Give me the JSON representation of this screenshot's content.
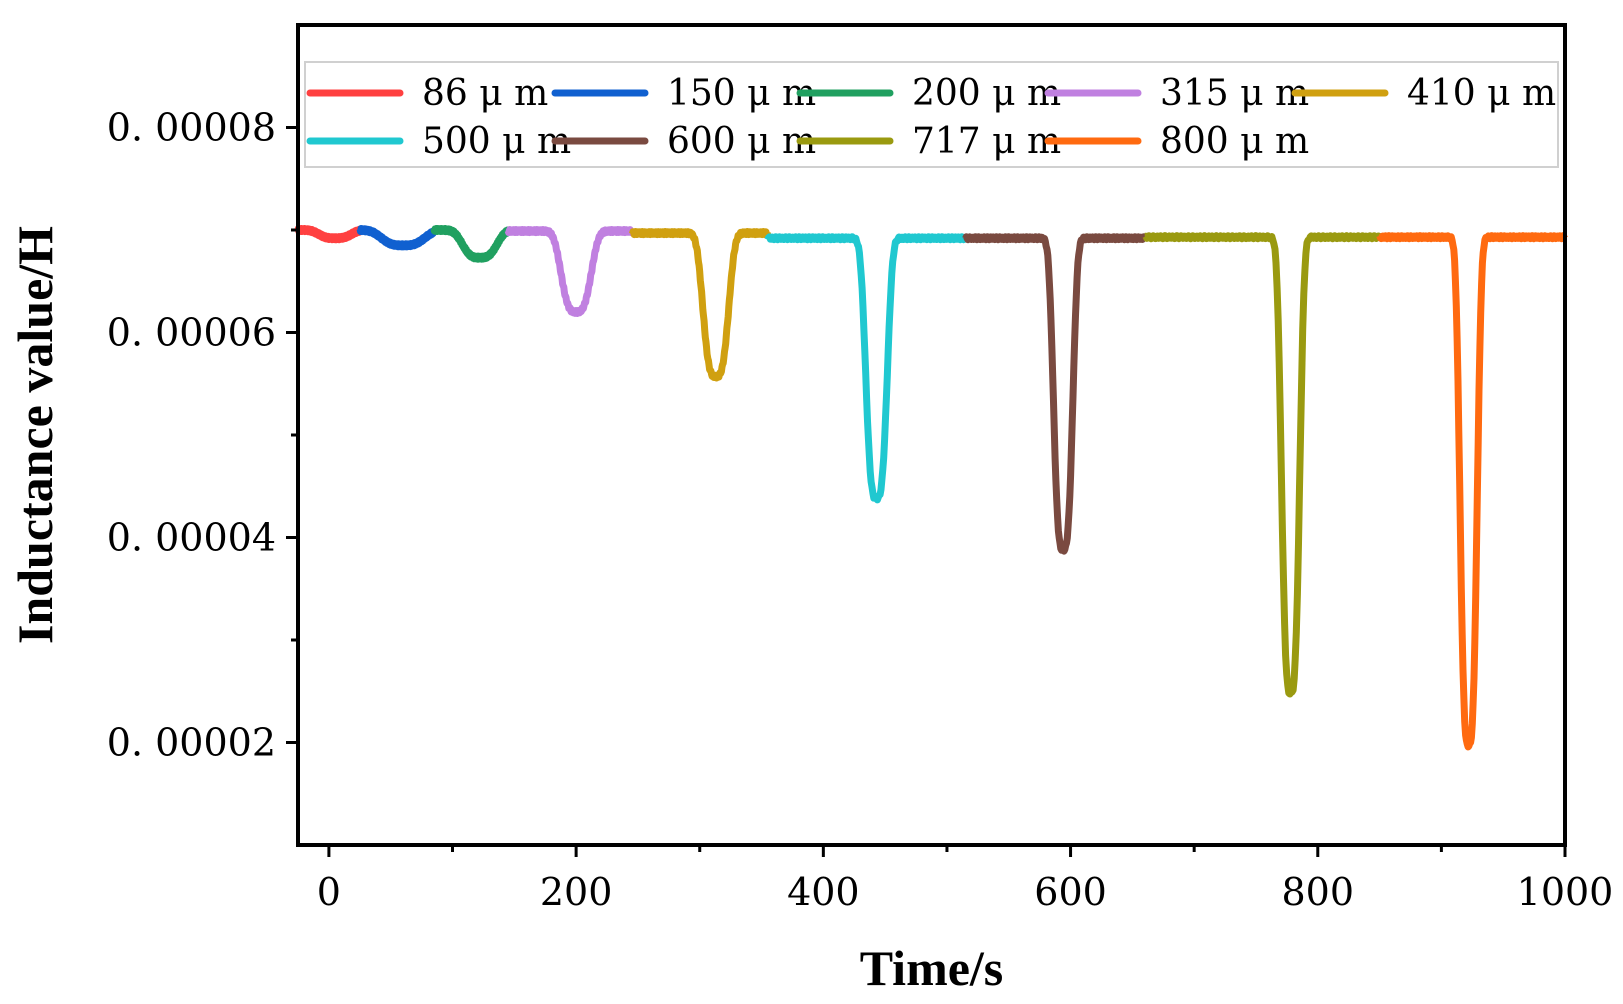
{
  "chart_data": {
    "type": "line",
    "title": "",
    "xlabel": "Time/s",
    "ylabel": "Inductance value/H",
    "xlim": [
      -25,
      1000
    ],
    "ylim": [
      1e-05,
      9e-05
    ],
    "x_ticks": [
      0,
      200,
      400,
      600,
      800,
      1000
    ],
    "x_tick_labels": [
      "0",
      "200",
      "400",
      "600",
      "800",
      "1000"
    ],
    "y_ticks": [
      2e-05,
      4e-05,
      6e-05,
      8e-05
    ],
    "y_tick_labels": [
      "0. 00002",
      "0. 00004",
      "0. 00006",
      "0. 00008"
    ],
    "grid": false,
    "legend_position": "top",
    "series": [
      {
        "name": "86 μ m",
        "color": "#ff4040",
        "x_range": [
          -25,
          25
        ],
        "baseline": 7e-05,
        "dip_center": 5,
        "dip_min": 6.92e-05,
        "dip_width": 30
      },
      {
        "name": "150 μ m",
        "color": "#1060d0",
        "x_range": [
          25,
          85
        ],
        "baseline": 7e-05,
        "dip_center": 60,
        "dip_min": 6.85e-05,
        "dip_width": 40
      },
      {
        "name": "200 μ m",
        "color": "#20a060",
        "x_range": [
          85,
          145
        ],
        "baseline": 7e-05,
        "dip_center": 122,
        "dip_min": 6.73e-05,
        "dip_width": 32
      },
      {
        "name": "315 μ m",
        "color": "#c080e0",
        "x_range": [
          145,
          245
        ],
        "baseline": 6.99e-05,
        "dip_center": 200,
        "dip_min": 6.2e-05,
        "dip_width": 28
      },
      {
        "name": "410 μ m",
        "color": "#d0a010",
        "x_range": [
          245,
          355
        ],
        "baseline": 6.97e-05,
        "dip_center": 313,
        "dip_min": 5.57e-05,
        "dip_width": 24
      },
      {
        "name": "500 μ m",
        "color": "#20c8d0",
        "x_range": [
          355,
          515
        ],
        "baseline": 6.92e-05,
        "dip_center": 443,
        "dip_min": 4.38e-05,
        "dip_width": 20
      },
      {
        "name": "600 μ m",
        "color": "#7a4a40",
        "x_range": [
          515,
          660
        ],
        "baseline": 6.92e-05,
        "dip_center": 594,
        "dip_min": 3.88e-05,
        "dip_width": 18
      },
      {
        "name": "717 μ m",
        "color": "#9a9a10",
        "x_range": [
          660,
          850
        ],
        "baseline": 6.93e-05,
        "dip_center": 778,
        "dip_min": 2.48e-05,
        "dip_width": 17
      },
      {
        "name": "800 μ m",
        "color": "#ff6a10",
        "x_range": [
          850,
          1000
        ],
        "baseline": 6.93e-05,
        "dip_center": 922,
        "dip_min": 1.97e-05,
        "dip_width": 16
      }
    ]
  }
}
